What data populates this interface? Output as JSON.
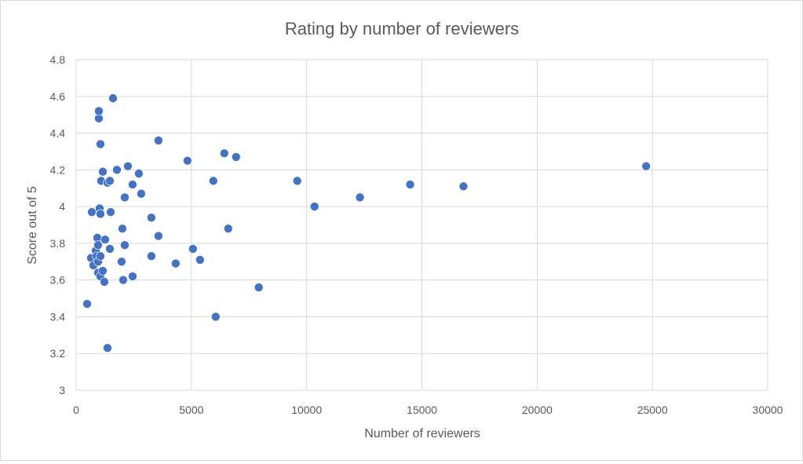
{
  "chart_data": {
    "type": "scatter",
    "title": "Rating by number of reviewers",
    "xlabel": "Number of reviewers",
    "ylabel": "Score out of 5",
    "xlim": [
      0,
      30000
    ],
    "ylim": [
      3,
      4.8
    ],
    "xticks": [
      0,
      5000,
      10000,
      15000,
      20000,
      25000,
      30000
    ],
    "yticks": [
      3,
      3.2,
      3.4,
      3.6,
      3.8,
      4,
      4.2,
      4.4,
      4.6,
      4.8
    ],
    "ytick_labels": [
      "3",
      "3.2",
      "3.4",
      "3.6",
      "3.8",
      "4",
      "4.2",
      "4.4",
      "4.6",
      "4.8"
    ],
    "grid": true,
    "marker_color": "#4472C4",
    "series": [
      {
        "name": "Score",
        "points": [
          [
            476,
            3.47
          ],
          [
            680,
            3.97
          ],
          [
            646,
            3.72
          ],
          [
            748,
            3.68
          ],
          [
            850,
            3.76
          ],
          [
            884,
            3.73
          ],
          [
            918,
            3.83
          ],
          [
            952,
            3.79
          ],
          [
            986,
            4.48
          ],
          [
            986,
            4.52
          ],
          [
            952,
            3.7
          ],
          [
            952,
            3.64
          ],
          [
            1054,
            4.34
          ],
          [
            1020,
            3.99
          ],
          [
            1054,
            3.96
          ],
          [
            1054,
            3.73
          ],
          [
            1088,
            4.14
          ],
          [
            1156,
            4.19
          ],
          [
            1054,
            3.62
          ],
          [
            1156,
            3.65
          ],
          [
            1224,
            3.59
          ],
          [
            1258,
            3.82
          ],
          [
            1361,
            4.13
          ],
          [
            1463,
            4.14
          ],
          [
            1497,
            3.97
          ],
          [
            1463,
            3.77
          ],
          [
            1361,
            3.23
          ],
          [
            1599,
            4.59
          ],
          [
            1769,
            4.2
          ],
          [
            2007,
            3.88
          ],
          [
            2109,
            3.79
          ],
          [
            2109,
            4.05
          ],
          [
            2245,
            4.22
          ],
          [
            1973,
            3.7
          ],
          [
            2041,
            3.6
          ],
          [
            2449,
            4.12
          ],
          [
            2449,
            3.62
          ],
          [
            2721,
            4.18
          ],
          [
            2823,
            4.07
          ],
          [
            3265,
            3.94
          ],
          [
            3265,
            3.73
          ],
          [
            3571,
            4.36
          ],
          [
            3571,
            3.84
          ],
          [
            4320,
            3.69
          ],
          [
            4830,
            4.25
          ],
          [
            5068,
            3.77
          ],
          [
            5374,
            3.71
          ],
          [
            5952,
            4.14
          ],
          [
            6054,
            3.4
          ],
          [
            6429,
            4.29
          ],
          [
            6599,
            3.88
          ],
          [
            6939,
            4.27
          ],
          [
            7925,
            3.56
          ],
          [
            9592,
            4.14
          ],
          [
            10340,
            4.0
          ],
          [
            12313,
            4.05
          ],
          [
            14490,
            4.12
          ],
          [
            16803,
            4.11
          ],
          [
            24728,
            4.22
          ]
        ]
      }
    ]
  }
}
